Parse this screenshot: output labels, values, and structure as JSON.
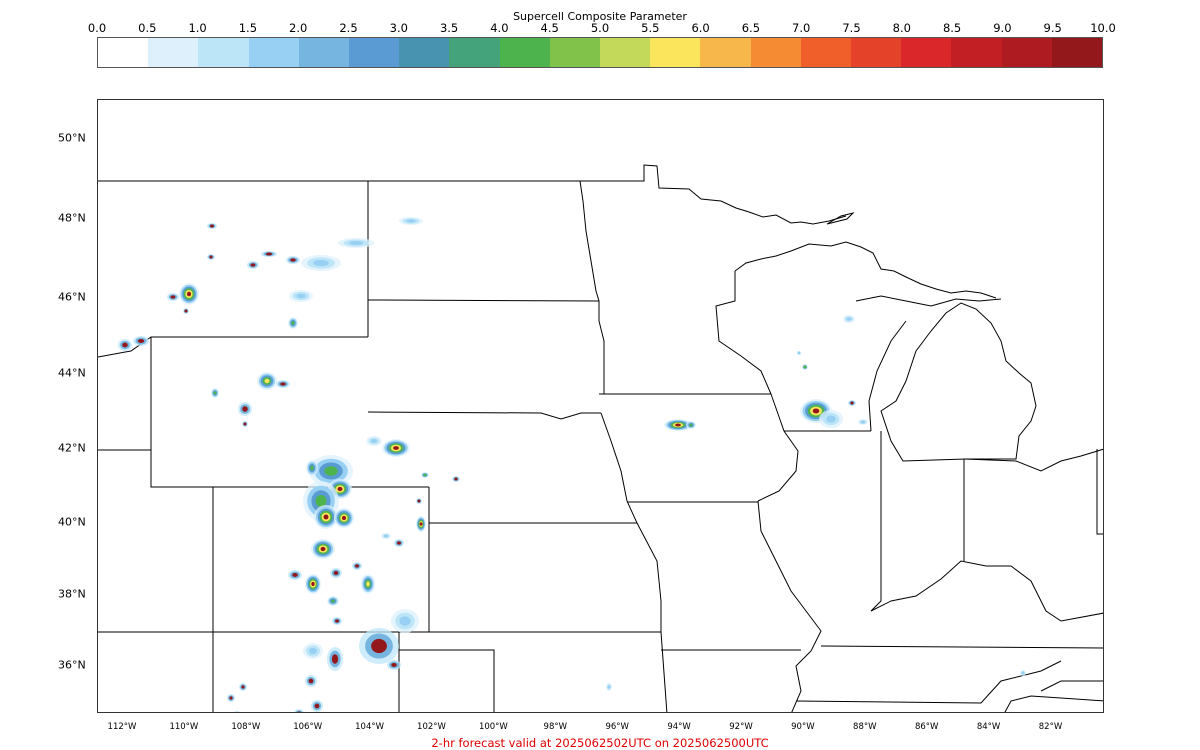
{
  "colorbar": {
    "title": "Supercell Composite Parameter",
    "ticks": [
      "0.0",
      "0.5",
      "1.0",
      "1.5",
      "2.0",
      "2.5",
      "3.0",
      "3.5",
      "4.0",
      "4.5",
      "5.0",
      "5.5",
      "6.0",
      "6.5",
      "7.0",
      "7.5",
      "8.0",
      "8.5",
      "9.0",
      "9.5",
      "10.0"
    ],
    "colors": [
      "#ffffff",
      "#ddf0fc",
      "#bde5f8",
      "#97d0f2",
      "#76b5e0",
      "#5a9bd3",
      "#4893b0",
      "#45a37c",
      "#4db34d",
      "#80c24a",
      "#c2d95a",
      "#fbe55c",
      "#f8b74b",
      "#f58b33",
      "#f05f2a",
      "#e4432a",
      "#d9272a",
      "#c21f24",
      "#ae1c22",
      "#92181b"
    ]
  },
  "map": {
    "lat_labels": [
      "50°N",
      "48°N",
      "46°N",
      "44°N",
      "42°N",
      "40°N",
      "38°N",
      "36°N"
    ],
    "lon_labels": [
      "112°W",
      "110°W",
      "108°W",
      "106°W",
      "104°W",
      "102°W",
      "100°W",
      "98°W",
      "96°W",
      "94°W",
      "92°W",
      "90°W",
      "88°W",
      "86°W",
      "84°W",
      "82°W"
    ]
  },
  "footer": "2-hr forecast valid at 2025062502UTC on 2025062500UTC"
}
